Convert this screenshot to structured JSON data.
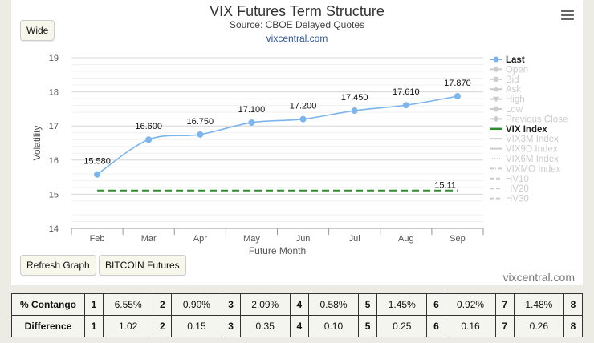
{
  "header": {
    "title": "VIX Futures Term Structure",
    "subtitle": "Source: CBOE Delayed Quotes",
    "site": "vixcentral.com",
    "credit": "vixcentral.com"
  },
  "buttons": {
    "wide": "Wide",
    "refresh": "Refresh Graph",
    "bitcoin": "BITCOIN Futures"
  },
  "chart_data": {
    "type": "line",
    "title": "VIX Futures Term Structure",
    "xlabel": "Future Month",
    "ylabel": "Volatility",
    "categories": [
      "Feb",
      "Mar",
      "Apr",
      "May",
      "Jun",
      "Jul",
      "Aug",
      "Sep"
    ],
    "ylim": [
      14,
      19
    ],
    "yticks": [
      14,
      15,
      16,
      17,
      18,
      19
    ],
    "grid": true,
    "legend_position": "right",
    "series": [
      {
        "name": "Last",
        "values": [
          15.58,
          16.6,
          16.75,
          17.1,
          17.2,
          17.45,
          17.61,
          17.87
        ],
        "labels": [
          "15.580",
          "16.600",
          "16.750",
          "17.100",
          "17.200",
          "17.450",
          "17.610",
          "17.870"
        ],
        "color": "#7cb5ec"
      },
      {
        "name": "VIX Index",
        "values": [
          15.11,
          15.11,
          15.11,
          15.11,
          15.11,
          15.11,
          15.11,
          15.11
        ],
        "end_label": "15.11",
        "color": "#2e8b2e",
        "dash": "dashed"
      }
    ],
    "legend": [
      {
        "name": "Last",
        "active": true,
        "marker": "circle"
      },
      {
        "name": "Open",
        "active": false,
        "marker": "diamond"
      },
      {
        "name": "Bid",
        "active": false,
        "marker": "square"
      },
      {
        "name": "Ask",
        "active": false,
        "marker": "triangle"
      },
      {
        "name": "High",
        "active": false,
        "marker": "triangle-down"
      },
      {
        "name": "Low",
        "active": false,
        "marker": "circle"
      },
      {
        "name": "Previous Close",
        "active": false,
        "marker": "diamond"
      },
      {
        "name": "VIX Index",
        "active": true,
        "marker": "line"
      },
      {
        "name": "VIX3M Index",
        "active": false,
        "marker": "line"
      },
      {
        "name": "VIX9D Index",
        "active": false,
        "marker": "line"
      },
      {
        "name": "VIX6M Index",
        "active": false,
        "marker": "dotted"
      },
      {
        "name": "VIXMO Index",
        "active": false,
        "marker": "dashdot"
      },
      {
        "name": "HV10",
        "active": false,
        "marker": "dash"
      },
      {
        "name": "HV20",
        "active": false,
        "marker": "dash"
      },
      {
        "name": "HV30",
        "active": false,
        "marker": "dash"
      }
    ]
  },
  "table": {
    "rows": [
      {
        "label": "% Contango",
        "cells": [
          [
            "1",
            "6.55%"
          ],
          [
            "2",
            "0.90%"
          ],
          [
            "3",
            "2.09%"
          ],
          [
            "4",
            "0.58%"
          ],
          [
            "5",
            "1.45%"
          ],
          [
            "6",
            "0.92%"
          ],
          [
            "7",
            "1.48%"
          ],
          [
            "8",
            ""
          ]
        ]
      },
      {
        "label": "Difference",
        "cells": [
          [
            "1",
            "1.02"
          ],
          [
            "2",
            "0.15"
          ],
          [
            "3",
            "0.35"
          ],
          [
            "4",
            "0.10"
          ],
          [
            "5",
            "0.25"
          ],
          [
            "6",
            "0.16"
          ],
          [
            "7",
            "0.26"
          ],
          [
            "8",
            ""
          ]
        ]
      }
    ]
  }
}
